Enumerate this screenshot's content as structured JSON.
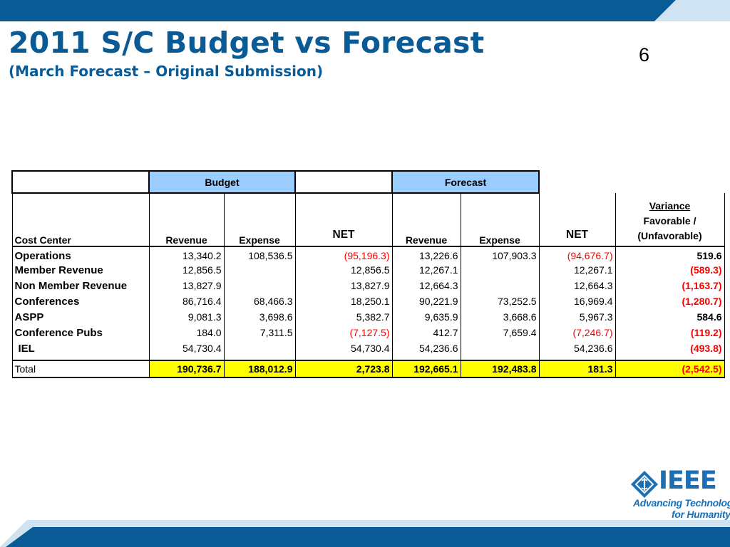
{
  "colors": {
    "band": "#0a5a96",
    "band_light": "#cfe3f3",
    "title": "#0a5a96",
    "header_fill": "#99ccff",
    "total_fill": "#ffff00",
    "negative": "#ff0000",
    "logo": "#1a6fb5"
  },
  "slide": {
    "title": "2011 S/C Budget vs Forecast",
    "subtitle": "(March Forecast – Original Submission)",
    "number": "6"
  },
  "table": {
    "group_headers": {
      "budget": "Budget",
      "forecast": "Forecast"
    },
    "columns": {
      "cost_center": "Cost Center",
      "budget_revenue": "Revenue",
      "budget_expense": "Expense",
      "budget_net": "NET",
      "forecast_revenue": "Revenue",
      "forecast_expense": "Expense",
      "forecast_net": "NET",
      "variance_title": "Variance",
      "variance_favorable": "Favorable /",
      "variance_unfavorable": "(Unfavorable)"
    },
    "rows": [
      {
        "name": "Operations",
        "b_rev": "13,340.2",
        "b_exp": "108,536.5",
        "b_net": "(95,196.3)",
        "f_rev": "13,226.6",
        "f_exp": "107,903.3",
        "f_net": "(94,676.7)",
        "variance": "519.6"
      },
      {
        "name": "Member Revenue",
        "b_rev": "12,856.5",
        "b_exp": "",
        "b_net": "12,856.5",
        "f_rev": "12,267.1",
        "f_exp": "",
        "f_net": "12,267.1",
        "variance": "(589.3)"
      },
      {
        "name": "Non Member Revenue",
        "b_rev": "13,827.9",
        "b_exp": "",
        "b_net": "13,827.9",
        "f_rev": "12,664.3",
        "f_exp": "",
        "f_net": "12,664.3",
        "variance": "(1,163.7)"
      },
      {
        "name": "Conferences",
        "b_rev": "86,716.4",
        "b_exp": "68,466.3",
        "b_net": "18,250.1",
        "f_rev": "90,221.9",
        "f_exp": "73,252.5",
        "f_net": "16,969.4",
        "variance": "(1,280.7)"
      },
      {
        "name": "ASPP",
        "b_rev": "9,081.3",
        "b_exp": "3,698.6",
        "b_net": "5,382.7",
        "f_rev": "9,635.9",
        "f_exp": "3,668.6",
        "f_net": "5,967.3",
        "variance": "584.6"
      },
      {
        "name": "Conference Pubs",
        "b_rev": "184.0",
        "b_exp": "7,311.5",
        "b_net": "(7,127.5)",
        "f_rev": "412.7",
        "f_exp": "7,659.4",
        "f_net": "(7,246.7)",
        "variance": "(119.2)"
      },
      {
        "name": "IEL",
        "b_rev": "54,730.4",
        "b_exp": "",
        "b_net": "54,730.4",
        "f_rev": "54,236.6",
        "f_exp": "",
        "f_net": "54,236.6",
        "variance": "(493.8)"
      }
    ],
    "total": {
      "name": "Total",
      "b_rev": "190,736.7",
      "b_exp": "188,012.9",
      "b_net": "2,723.8",
      "f_rev": "192,665.1",
      "f_exp": "192,483.8",
      "f_net": "181.3",
      "variance": "(2,542.5)"
    }
  },
  "logo": {
    "icon": "ieee-diamond-icon",
    "wordmark": "IEEE",
    "tagline_line1": "Advancing Technology",
    "tagline_line2": "for Humanity"
  }
}
